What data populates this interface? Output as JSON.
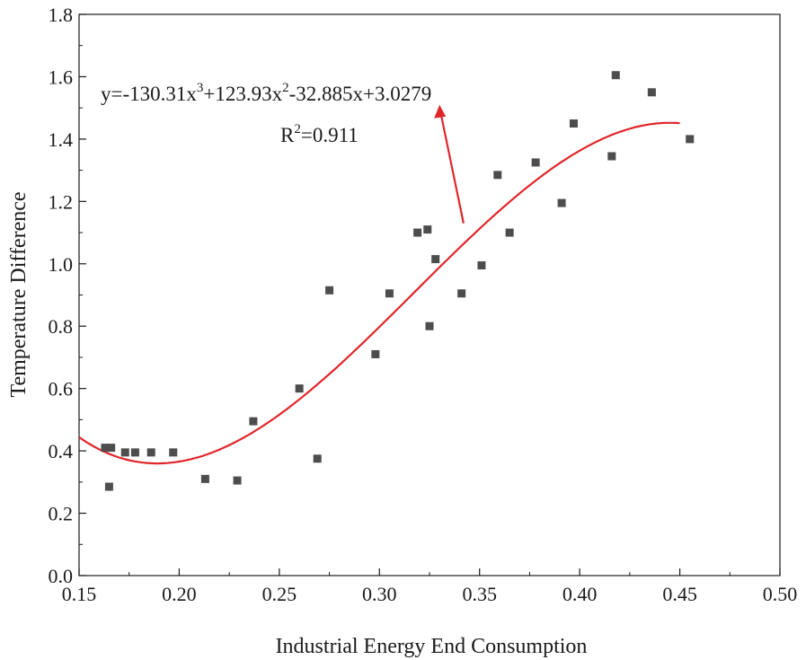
{
  "chart_data": {
    "type": "scatter",
    "title": "",
    "xlabel": "Industrial Energy End Consumption",
    "ylabel": "Temperature Difference",
    "xlim": [
      0.15,
      0.5
    ],
    "ylim": [
      0.0,
      1.8
    ],
    "xticks": [
      "0.15",
      "0.20",
      "0.25",
      "0.30",
      "0.35",
      "0.40",
      "0.45",
      "0.50"
    ],
    "yticks": [
      "0.0",
      "0.2",
      "0.4",
      "0.6",
      "0.8",
      "1.0",
      "1.2",
      "1.4",
      "1.6",
      "1.8"
    ],
    "series": [
      {
        "name": "observations",
        "marker": "square",
        "color": "#4d4d4d",
        "points": [
          [
            0.163,
            0.41
          ],
          [
            0.166,
            0.41
          ],
          [
            0.165,
            0.285
          ],
          [
            0.173,
            0.395
          ],
          [
            0.178,
            0.395
          ],
          [
            0.186,
            0.395
          ],
          [
            0.197,
            0.395
          ],
          [
            0.213,
            0.31
          ],
          [
            0.229,
            0.305
          ],
          [
            0.237,
            0.495
          ],
          [
            0.26,
            0.6
          ],
          [
            0.269,
            0.375
          ],
          [
            0.275,
            0.915
          ],
          [
            0.298,
            0.71
          ],
          [
            0.305,
            0.905
          ],
          [
            0.319,
            1.1
          ],
          [
            0.324,
            1.11
          ],
          [
            0.325,
            0.8
          ],
          [
            0.328,
            1.015
          ],
          [
            0.341,
            0.905
          ],
          [
            0.351,
            0.995
          ],
          [
            0.359,
            1.285
          ],
          [
            0.365,
            1.1
          ],
          [
            0.378,
            1.325
          ],
          [
            0.391,
            1.195
          ],
          [
            0.397,
            1.45
          ],
          [
            0.416,
            1.345
          ],
          [
            0.418,
            1.605
          ],
          [
            0.436,
            1.55
          ],
          [
            0.455,
            1.4
          ]
        ]
      },
      {
        "name": "cubic fit",
        "type": "line",
        "color": "#e0262a",
        "coefficients": [
          -130.31,
          123.93,
          -32.885,
          3.0279
        ],
        "x_range": [
          0.15,
          0.45
        ]
      }
    ],
    "annotation": {
      "equation_prefix": "y=-130.31x",
      "equation_exp1": "3",
      "equation_mid": "+123.93x",
      "equation_exp2": "2",
      "equation_suffix": "-32.885x+3.0279",
      "r2_prefix": "R",
      "r2_exp": "2",
      "r2_value": "=0.911",
      "arrow_color": "#e0262a"
    }
  }
}
